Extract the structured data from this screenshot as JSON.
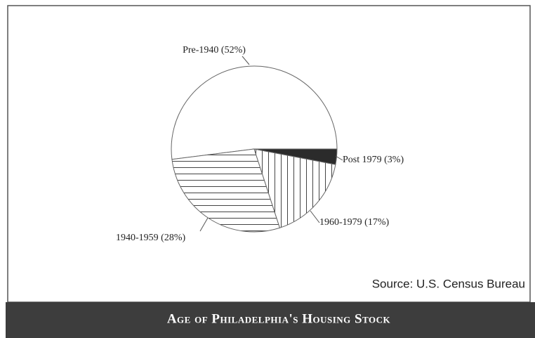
{
  "chart_data": {
    "type": "pie",
    "title": "Age of Philadelphia's Housing Stock",
    "source": "Source: U.S. Census Bureau",
    "values": [
      52,
      28,
      17,
      3
    ],
    "value_labels": [
      "Pre-1940 (52%)",
      "1940-1959 (28%)",
      "1960-1979 (17%)",
      "Post 1979 (3%)"
    ],
    "patterns": [
      "none",
      "horizontal",
      "vertical",
      "solid"
    ],
    "solid_color": "#2b2b2b"
  }
}
